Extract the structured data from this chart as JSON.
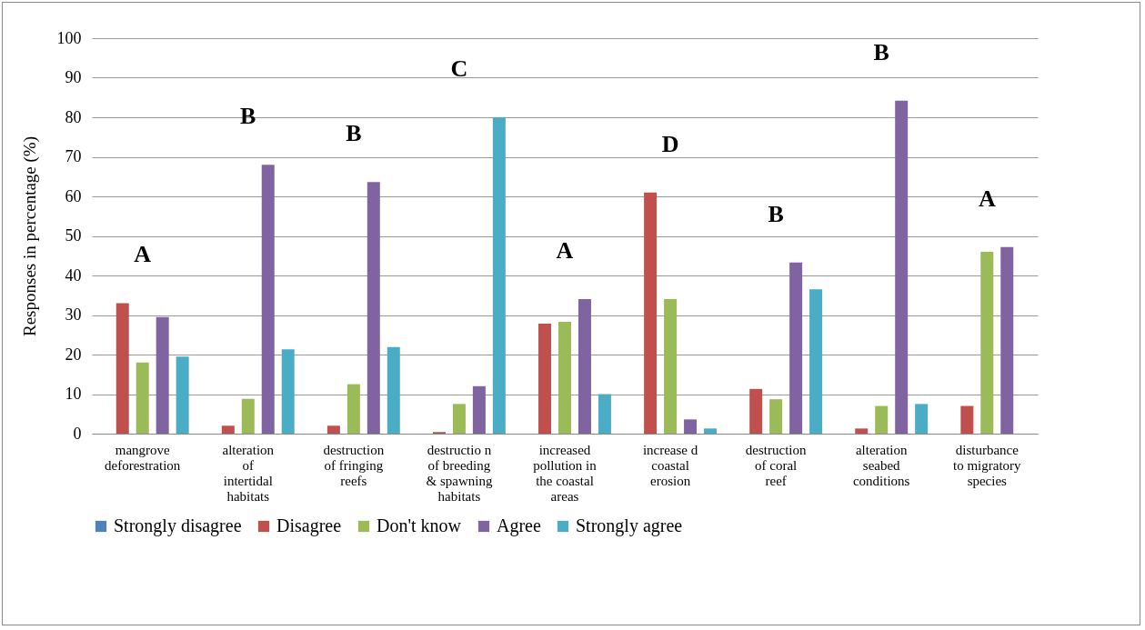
{
  "chart_data": {
    "type": "bar",
    "ylabel": "Responses in percentage  (%)",
    "categories": [
      "mangrove deforestration",
      "alteration of intertidal habitats",
      "destruction of fringing reefs",
      "destructio n of breeding & spawning habitats",
      "increased pollution in the coastal areas",
      "increase d coastal erosion",
      "destruction of coral reef",
      "alteration seabed conditions",
      "disturbance to migratory species"
    ],
    "series": [
      {
        "name": "Strongly disagree",
        "color": "#4f81bd",
        "values": [
          0,
          0,
          0,
          0,
          0,
          0,
          0,
          0,
          0
        ]
      },
      {
        "name": "Disagree",
        "color": "#c0504d",
        "values": [
          33,
          2,
          2,
          0.4,
          27.8,
          61,
          11.3,
          1.3,
          7
        ]
      },
      {
        "name": "Don't know",
        "color": "#9bbb59",
        "values": [
          18,
          8.8,
          12.5,
          7.5,
          28.3,
          34,
          8.7,
          7,
          46
        ]
      },
      {
        "name": "Agree",
        "color": "#8064a2",
        "values": [
          29.5,
          68,
          63.6,
          12,
          34,
          3.6,
          43.3,
          84.2,
          47.2
        ]
      },
      {
        "name": "Strongly agree",
        "color": "#4bacc6",
        "values": [
          19.5,
          21.3,
          21.9,
          80,
          10,
          1.3,
          36.5,
          7.5,
          0
        ]
      }
    ],
    "ylim": [
      0,
      100
    ],
    "yticks": [
      0,
      10,
      20,
      30,
      40,
      50,
      60,
      70,
      80,
      90,
      100
    ],
    "grid": "y",
    "legend": "bottom",
    "annotations": [
      "A",
      "B",
      "B",
      "C",
      "A",
      "D",
      "B",
      "B",
      "A"
    ]
  }
}
